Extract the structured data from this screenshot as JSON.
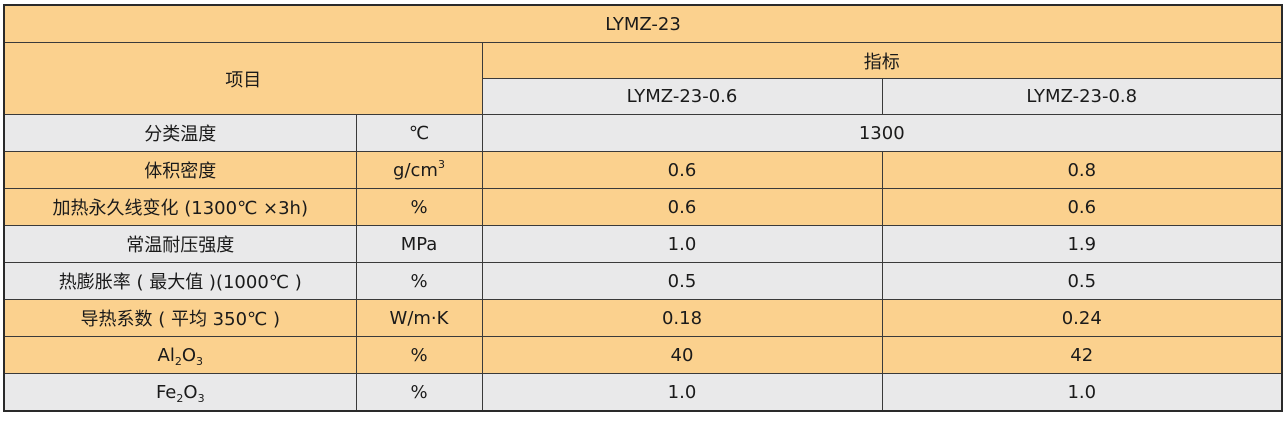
{
  "table": {
    "title": "LYMZ-23",
    "header": {
      "item": "项目",
      "spec": "指标",
      "models": [
        "LYMZ-23-0.6",
        "LYMZ-23-0.8"
      ]
    },
    "rows": [
      {
        "name": "分类温度",
        "unit": "℃",
        "merged": "1300"
      },
      {
        "name": "体积密度",
        "unit_base": "g/cm",
        "unit_sup": "3",
        "v1": "0.6",
        "v2": "0.8"
      },
      {
        "name": "加热永久线变化 (1300℃ ×3h)",
        "unit": "%",
        "v1": "0.6",
        "v2": "0.6"
      },
      {
        "name": "常温耐压强度",
        "unit": "MPa",
        "v1": "1.0",
        "v2": "1.9"
      },
      {
        "name": "热膨胀率 ( 最大值 )(1000℃ )",
        "unit": "%",
        "v1": "0.5",
        "v2": "0.5"
      },
      {
        "name": "导热系数 ( 平均 350℃ )",
        "unit": "W/m·K",
        "v1": "0.18",
        "v2": "0.24"
      },
      {
        "name_parts": [
          "Al",
          "2",
          "O",
          "3"
        ],
        "unit": "%",
        "v1": "40",
        "v2": "42"
      },
      {
        "name_parts": [
          "Fe",
          "2",
          "O",
          "3"
        ],
        "unit": "%",
        "v1": "1.0",
        "v2": "1.0"
      }
    ]
  }
}
